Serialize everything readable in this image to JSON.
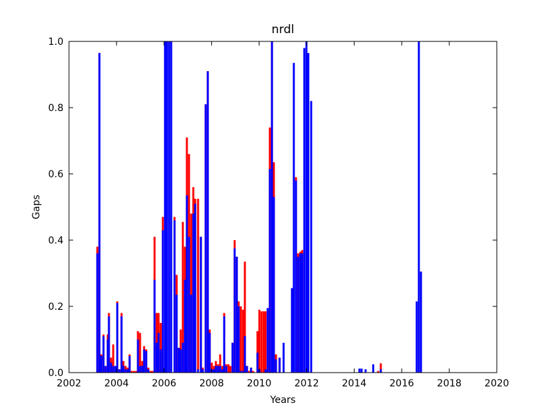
{
  "chart_data": {
    "type": "bar",
    "title": "nrdl",
    "x_label": "Years",
    "y_label": "Gaps",
    "xlim": [
      2002,
      2020
    ],
    "xticks": [
      2002,
      2004,
      2006,
      2008,
      2010,
      2012,
      2014,
      2016,
      2018,
      2020
    ],
    "ylim": [
      0,
      1
    ],
    "yticks": [
      {
        "value": 0,
        "label": "0.0"
      },
      0.2,
      0.4,
      0.6,
      0.8,
      {
        "value": 1,
        "label": "1.0"
      }
    ],
    "x": [
      2003.19,
      2003.28,
      2003.36,
      2003.45,
      2003.54,
      2003.63,
      2003.68,
      2003.77,
      2003.86,
      2003.95,
      2004.03,
      2004.12,
      2004.21,
      2004.29,
      2004.38,
      2004.47,
      2004.55,
      2004.64,
      2004.73,
      2004.82,
      2004.9,
      2004.99,
      2005.08,
      2005.16,
      2005.25,
      2005.34,
      2005.43,
      2005.51,
      2005.6,
      2005.69,
      2005.77,
      2005.86,
      2005.95,
      2006.04,
      2006.12,
      2006.21,
      2006.3,
      2006.44,
      2006.53,
      2006.62,
      2006.7,
      2006.79,
      2006.88,
      2006.96,
      2007.05,
      2007.14,
      2007.23,
      2007.31,
      2007.43,
      2007.55,
      2007.63,
      2007.75,
      2007.84,
      2007.92,
      2008.01,
      2008.1,
      2008.18,
      2008.27,
      2008.36,
      2008.45,
      2008.53,
      2008.62,
      2008.71,
      2008.79,
      2008.88,
      2008.97,
      2009.06,
      2009.14,
      2009.23,
      2009.32,
      2009.4,
      2009.49,
      2009.58,
      2009.66,
      2009.75,
      2009.93,
      2010.01,
      2010.1,
      2010.19,
      2010.27,
      2010.36,
      2010.45,
      2010.54,
      2010.62,
      2010.71,
      2010.86,
      2011.03,
      2011.38,
      2011.46,
      2011.55,
      2011.64,
      2011.73,
      2011.81,
      2011.9,
      2011.99,
      2012.07,
      2012.19,
      2014.22,
      2014.31,
      2014.48,
      2014.8,
      2015.01,
      2015.12,
      2016.63,
      2016.72,
      2016.81
    ],
    "series": [
      {
        "color": "#ff0000",
        "values": [
          0.38,
          0.965,
          0.055,
          0.115,
          0.02,
          0.115,
          0.18,
          0.045,
          0.085,
          0.02,
          0.215,
          0.01,
          0.18,
          0.035,
          0.02,
          0.015,
          0.055,
          0.005,
          0.005,
          0.005,
          0.125,
          0.12,
          0.035,
          0.08,
          0.07,
          0.015,
          0.005,
          0.005,
          0.41,
          0.18,
          0.18,
          0.15,
          0.47,
          null,
          null,
          null,
          null,
          0.47,
          0.295,
          0.075,
          0.13,
          0.455,
          0.38,
          0.71,
          0.66,
          0.48,
          0.56,
          0.525,
          0.525,
          0.41,
          0.015,
          0.81,
          0.91,
          0.13,
          0.03,
          0.02,
          0.035,
          0.025,
          0.055,
          0.02,
          0.18,
          0.025,
          0.025,
          0.02,
          0.09,
          0.4,
          0.35,
          0.215,
          0.2,
          0.19,
          0.335,
          0.02,
          0.005,
          0.015,
          0.005,
          0.125,
          0.19,
          0.185,
          0.185,
          0.185,
          0.19,
          0.74,
          1,
          0.635,
          0.055,
          0.045,
          null,
          null,
          null,
          0.59,
          0.36,
          0.365,
          0.37,
          null,
          null,
          null,
          null,
          null,
          null,
          null,
          null,
          0.005,
          0.028,
          null,
          null,
          null
        ]
      },
      {
        "color": "#0000ff",
        "values": [
          0.36,
          0.965,
          0.05,
          0.11,
          0.02,
          0.1,
          0.17,
          0.03,
          0.02,
          0.02,
          0.21,
          0.01,
          0.17,
          0.02,
          0.01,
          0.01,
          0.05,
          null,
          null,
          null,
          0.1,
          0.02,
          0.02,
          0.07,
          0.065,
          0.01,
          null,
          null,
          0.28,
          0.09,
          0.12,
          0.07,
          0.43,
          1,
          1,
          1,
          1,
          0.46,
          0.235,
          0.075,
          0.07,
          0.09,
          0.28,
          0.535,
          0.41,
          0.235,
          0.48,
          0.51,
          0.01,
          0.41,
          0.01,
          0.81,
          0.91,
          0.12,
          0.01,
          0.01,
          0.02,
          0.02,
          0.02,
          0.01,
          0.17,
          0.02,
          null,
          null,
          0.09,
          0.375,
          0.35,
          0.2,
          0.005,
          0.005,
          0.11,
          0.02,
          null,
          0.015,
          null,
          0.06,
          0.01,
          null,
          null,
          0.01,
          0.195,
          0.615,
          1,
          0.53,
          0.04,
          0.045,
          0.09,
          0.255,
          0.935,
          0.58,
          0.35,
          0.36,
          0.36,
          0.98,
          1,
          0.965,
          0.82,
          0.012,
          0.012,
          0.01,
          0.025,
          null,
          0.01,
          0.215,
          1,
          0.305
        ]
      }
    ]
  }
}
